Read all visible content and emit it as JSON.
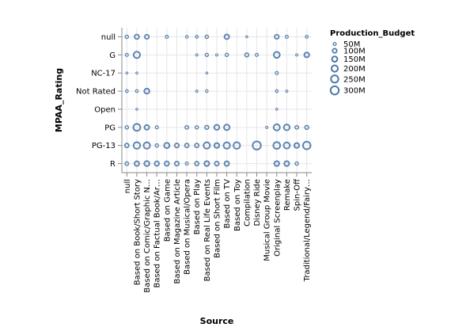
{
  "chart_data": {
    "type": "scatter",
    "xlabel": "Source",
    "ylabel": "MPAA_Rating",
    "x_categories": [
      "null",
      "Based on Book/Short Story",
      "Based on Comic/Graphic N…",
      "Based on Factual Book/Ar…",
      "Based on Game",
      "Based on Magazine Article",
      "Based on Musical/Opera",
      "Based on Play",
      "Based on Real Life Events",
      "Based on Short Film",
      "Based on TV",
      "Based on Toy",
      "Compilation",
      "Disney Ride",
      "Musical Group Movie",
      "Original Screenplay",
      "Remake",
      "Spin-Off",
      "Traditional/Legend/Fairy…"
    ],
    "y_categories": [
      "null",
      "G",
      "NC-17",
      "Not Rated",
      "Open",
      "PG",
      "PG-13",
      "R"
    ],
    "legend": {
      "title": "Production_Budget",
      "entries": [
        "50M",
        "100M",
        "150M",
        "200M",
        "250M",
        "300M"
      ],
      "values": [
        50,
        100,
        150,
        200,
        250,
        300
      ]
    },
    "size_unit": "M",
    "mark_color": "#4c78a8",
    "points": [
      {
        "x": "null",
        "y": "null",
        "size": 60
      },
      {
        "x": "Based on Book/Short Story",
        "y": "null",
        "size": 110
      },
      {
        "x": "Based on Comic/Graphic N…",
        "y": "null",
        "size": 100
      },
      {
        "x": "Based on Game",
        "y": "null",
        "size": 50
      },
      {
        "x": "Based on Musical/Opera",
        "y": "null",
        "size": 40
      },
      {
        "x": "Based on Play",
        "y": "null",
        "size": 45
      },
      {
        "x": "Based on Real Life Events",
        "y": "null",
        "size": 60
      },
      {
        "x": "Based on TV",
        "y": "null",
        "size": 120
      },
      {
        "x": "Compilation",
        "y": "null",
        "size": 25
      },
      {
        "x": "Original Screenplay",
        "y": "null",
        "size": 100
      },
      {
        "x": "Remake",
        "y": "null",
        "size": 50
      },
      {
        "x": "Traditional/Legend/Fairy…",
        "y": "null",
        "size": 45
      },
      {
        "x": "null",
        "y": "G",
        "size": 50
      },
      {
        "x": "Based on Book/Short Story",
        "y": "G",
        "size": 200
      },
      {
        "x": "Based on Play",
        "y": "G",
        "size": 30
      },
      {
        "x": "Based on Real Life Events",
        "y": "G",
        "size": 55
      },
      {
        "x": "Based on Short Film",
        "y": "G",
        "size": 30
      },
      {
        "x": "Based on TV",
        "y": "G",
        "size": 60
      },
      {
        "x": "Compilation",
        "y": "G",
        "size": 80
      },
      {
        "x": "Disney Ride",
        "y": "G",
        "size": 50
      },
      {
        "x": "Original Screenplay",
        "y": "G",
        "size": 180
      },
      {
        "x": "Spin-Off",
        "y": "G",
        "size": 30
      },
      {
        "x": "Traditional/Legend/Fairy…",
        "y": "G",
        "size": 130
      },
      {
        "x": "null",
        "y": "NC-17",
        "size": 25
      },
      {
        "x": "Based on Book/Short Story",
        "y": "NC-17",
        "size": 25
      },
      {
        "x": "Based on Real Life Events",
        "y": "NC-17",
        "size": 25
      },
      {
        "x": "Original Screenplay",
        "y": "NC-17",
        "size": 50
      },
      {
        "x": "null",
        "y": "Not Rated",
        "size": 45
      },
      {
        "x": "Based on Book/Short Story",
        "y": "Not Rated",
        "size": 45
      },
      {
        "x": "Based on Comic/Graphic N…",
        "y": "Not Rated",
        "size": 140
      },
      {
        "x": "Based on Play",
        "y": "Not Rated",
        "size": 30
      },
      {
        "x": "Based on Real Life Events",
        "y": "Not Rated",
        "size": 40
      },
      {
        "x": "Original Screenplay",
        "y": "Not Rated",
        "size": 45
      },
      {
        "x": "Remake",
        "y": "Not Rated",
        "size": 30
      },
      {
        "x": "Based on Book/Short Story",
        "y": "Open",
        "size": 25
      },
      {
        "x": "Original Screenplay",
        "y": "Open",
        "size": 25
      },
      {
        "x": "null",
        "y": "PG",
        "size": 60
      },
      {
        "x": "Based on Book/Short Story",
        "y": "PG",
        "size": 230
      },
      {
        "x": "Based on Comic/Graphic N…",
        "y": "PG",
        "size": 120
      },
      {
        "x": "Based on Factual Book/Ar…",
        "y": "PG",
        "size": 50
      },
      {
        "x": "Based on Musical/Opera",
        "y": "PG",
        "size": 70
      },
      {
        "x": "Based on Play",
        "y": "PG",
        "size": 60
      },
      {
        "x": "Based on Real Life Events",
        "y": "PG",
        "size": 80
      },
      {
        "x": "Based on Short Film",
        "y": "PG",
        "size": 140
      },
      {
        "x": "Based on TV",
        "y": "PG",
        "size": 160
      },
      {
        "x": "Musical Group Movie",
        "y": "PG",
        "size": 30
      },
      {
        "x": "Original Screenplay",
        "y": "PG",
        "size": 190
      },
      {
        "x": "Remake",
        "y": "PG",
        "size": 170
      },
      {
        "x": "Spin-Off",
        "y": "PG",
        "size": 70
      },
      {
        "x": "Traditional/Legend/Fairy…",
        "y": "PG",
        "size": 80
      },
      {
        "x": "null",
        "y": "PG-13",
        "size": 90
      },
      {
        "x": "Based on Book/Short Story",
        "y": "PG-13",
        "size": 210
      },
      {
        "x": "Based on Comic/Graphic N…",
        "y": "PG-13",
        "size": 200
      },
      {
        "x": "Based on Factual Book/Ar…",
        "y": "PG-13",
        "size": 60
      },
      {
        "x": "Based on Game",
        "y": "PG-13",
        "size": 150
      },
      {
        "x": "Based on Magazine Article",
        "y": "PG-13",
        "size": 100
      },
      {
        "x": "Based on Musical/Opera",
        "y": "PG-13",
        "size": 90
      },
      {
        "x": "Based on Play",
        "y": "PG-13",
        "size": 90
      },
      {
        "x": "Based on Real Life Events",
        "y": "PG-13",
        "size": 200
      },
      {
        "x": "Based on Short Film",
        "y": "PG-13",
        "size": 130
      },
      {
        "x": "Based on TV",
        "y": "PG-13",
        "size": 200
      },
      {
        "x": "Based on Toy",
        "y": "PG-13",
        "size": 210
      },
      {
        "x": "Disney Ride",
        "y": "PG-13",
        "size": 300
      },
      {
        "x": "Original Screenplay",
        "y": "PG-13",
        "size": 220
      },
      {
        "x": "Remake",
        "y": "PG-13",
        "size": 190
      },
      {
        "x": "Spin-Off",
        "y": "PG-13",
        "size": 130
      },
      {
        "x": "Traditional/Legend/Fairy…",
        "y": "PG-13",
        "size": 260
      },
      {
        "x": "null",
        "y": "R",
        "size": 70
      },
      {
        "x": "Based on Book/Short Story",
        "y": "R",
        "size": 120
      },
      {
        "x": "Based on Comic/Graphic N…",
        "y": "R",
        "size": 140
      },
      {
        "x": "Based on Factual Book/Ar…",
        "y": "R",
        "size": 110
      },
      {
        "x": "Based on Game",
        "y": "R",
        "size": 110
      },
      {
        "x": "Based on Magazine Article",
        "y": "R",
        "size": 100
      },
      {
        "x": "Based on Musical/Opera",
        "y": "R",
        "size": 50
      },
      {
        "x": "Based on Play",
        "y": "R",
        "size": 90
      },
      {
        "x": "Based on Real Life Events",
        "y": "R",
        "size": 130
      },
      {
        "x": "Based on Short Film",
        "y": "R",
        "size": 100
      },
      {
        "x": "Based on TV",
        "y": "R",
        "size": 120
      },
      {
        "x": "Original Screenplay",
        "y": "R",
        "size": 130
      },
      {
        "x": "Remake",
        "y": "R",
        "size": 130
      },
      {
        "x": "Spin-Off",
        "y": "R",
        "size": 60
      }
    ]
  }
}
